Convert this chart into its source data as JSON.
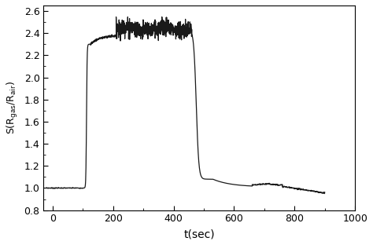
{
  "xlabel": "t(sec)",
  "xlim": [
    -30,
    1000
  ],
  "ylim": [
    0.8,
    2.65
  ],
  "xticks": [
    0,
    200,
    400,
    600,
    800,
    1000
  ],
  "yticks": [
    0.8,
    1.0,
    1.2,
    1.4,
    1.6,
    1.8,
    2.0,
    2.2,
    2.4,
    2.6
  ],
  "line_color": "#1a1a1a",
  "line_width": 0.9,
  "background_color": "#ffffff",
  "noise_plateau": 0.04,
  "noise_small": 0.005
}
